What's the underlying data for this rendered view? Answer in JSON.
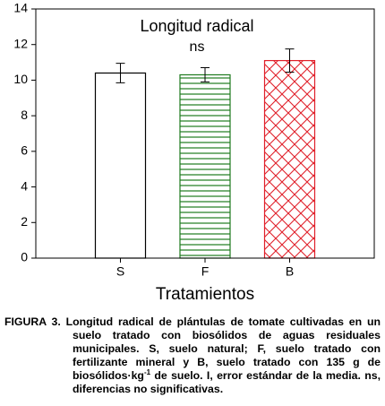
{
  "chart_data": {
    "type": "bar",
    "title": "Longitud radical",
    "subtitle": "ns",
    "x_label": "Tratamientos",
    "categories": [
      "S",
      "F",
      "B"
    ],
    "values": [
      10.4,
      10.3,
      11.1
    ],
    "errors": [
      0.55,
      0.4,
      0.65
    ],
    "colors": [
      "#000000",
      "#1e7a1e",
      "#e0202a"
    ],
    "patterns": [
      "none",
      "horizontal",
      "cross"
    ],
    "ylim": [
      0,
      14
    ],
    "yticks": [
      0,
      2,
      4,
      6,
      8,
      10,
      12,
      14
    ]
  },
  "caption": {
    "parts": [
      "FIGURA 3. Longitud radical de plántulas de tomate cultivadas en un suelo tratado con biosólidos de aguas residuales municipales. S, suelo natural; F, suelo tratado con fertilizante mineral y B, suelo tratado con 135 g de biosólidos·kg",
      "-1",
      "de suelo. I, error estándar de la media. ns, diferencias no significativas."
    ]
  }
}
